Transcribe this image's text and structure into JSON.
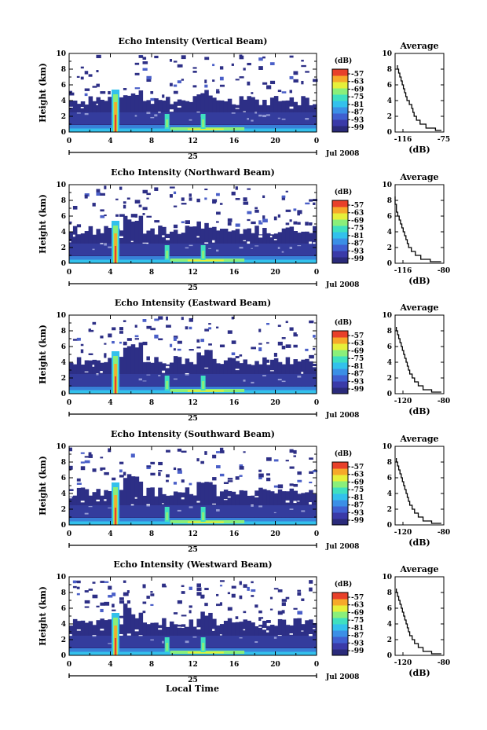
{
  "colors": {
    "colorbar": [
      "#2a2a7a",
      "#3a3aa8",
      "#3f5fd0",
      "#3b8fe6",
      "#33c1ec",
      "#3fe0c0",
      "#8aef7a",
      "#e6f03a",
      "#f6a92a",
      "#e8402a"
    ],
    "background": "#ffffff",
    "ink": "#000000"
  },
  "shared": {
    "ylabel": "Height (km)",
    "colorbar_unit": "(dB)",
    "colorbar_ticks": [
      "-57",
      "-63",
      "-69",
      "-75",
      "-81",
      "-87",
      "-93",
      "-99"
    ],
    "x_ticks": [
      "0",
      "4",
      "8",
      "12",
      "16",
      "20",
      "0"
    ],
    "y_ticks": [
      "0",
      "2",
      "4",
      "6",
      "8",
      "10"
    ],
    "day_label": "25",
    "month_year": "Jul 2008",
    "avg_title": "Average",
    "avg_xlabel": "(dB)",
    "xlabel": "Local Time"
  },
  "chart_data": [
    {
      "type": "heatmap",
      "title": "Echo Intensity (Vertical Beam)",
      "xlabel": "",
      "ylabel": "Height (km)",
      "xlim": [
        0,
        24
      ],
      "ylim": [
        0,
        10
      ],
      "zunit": "dB",
      "zlim": [
        -99,
        -57
      ],
      "features": {
        "ground_layer_top_km": 0.5,
        "cloud_layer_top_km": 4.0,
        "rain_event_hour": 4.5,
        "secondary_event_hours": [
          9.5,
          13.0
        ]
      },
      "profile": {
        "type": "line",
        "title": "Average",
        "xlabel": "(dB)",
        "xlim": [
          -116,
          -75
        ],
        "xticks": [
          "-116",
          "-75"
        ],
        "heights": [
          0.2,
          0.5,
          1,
          1.5,
          2,
          2.5,
          3,
          3.5,
          4,
          4.5,
          5,
          5.5,
          6,
          6.5,
          7,
          7.5,
          8,
          8.5
        ],
        "values": [
          -77,
          -82,
          -90,
          -95,
          -98,
          -100,
          -101,
          -102,
          -104,
          -106,
          -107,
          -108,
          -109,
          -110,
          -111,
          -112,
          -113,
          -114
        ]
      }
    },
    {
      "type": "heatmap",
      "title": "Echo Intensity (Northward Beam)",
      "xlabel": "",
      "ylabel": "Height (km)",
      "xlim": [
        0,
        24
      ],
      "ylim": [
        0,
        10
      ],
      "zunit": "dB",
      "zlim": [
        -99,
        -57
      ],
      "features": {
        "ground_layer_top_km": 0.5,
        "cloud_layer_top_km": 4.2,
        "rain_event_hour": 4.5,
        "secondary_event_hours": [
          9.5,
          13.0
        ]
      },
      "profile": {
        "type": "line",
        "title": "Average",
        "xlabel": "(dB)",
        "xlim": [
          -116,
          -80
        ],
        "xticks": [
          "-116",
          "-80"
        ],
        "heights": [
          0.2,
          0.5,
          1,
          1.5,
          2,
          2.5,
          3,
          3.5,
          4,
          4.5,
          5,
          5.5,
          6,
          6.5,
          7,
          7.5,
          8,
          8.5
        ],
        "values": [
          -82,
          -90,
          -97,
          -101,
          -104,
          -106,
          -107,
          -108,
          -109,
          -110,
          -111,
          -112,
          -113,
          -114,
          -115,
          -115,
          -116,
          -116
        ]
      }
    },
    {
      "type": "heatmap",
      "title": "Echo Intensity (Eastward Beam)",
      "xlabel": "",
      "ylabel": "Height (km)",
      "xlim": [
        0,
        24
      ],
      "ylim": [
        0,
        10
      ],
      "zunit": "dB",
      "zlim": [
        -99,
        -57
      ],
      "features": {
        "ground_layer_top_km": 0.5,
        "cloud_layer_top_km": 4.2,
        "rain_event_hour": 4.5,
        "secondary_event_hours": [
          9.5,
          13.0
        ]
      },
      "profile": {
        "type": "line",
        "title": "Average",
        "xlabel": "(dB)",
        "xlim": [
          -120,
          -80
        ],
        "xticks": [
          "-120",
          "-80"
        ],
        "heights": [
          0.2,
          0.5,
          1,
          1.5,
          2,
          2.5,
          3,
          3.5,
          4,
          4.5,
          5,
          5.5,
          6,
          6.5,
          7,
          7.5,
          8,
          8.5
        ],
        "values": [
          -82,
          -90,
          -97,
          -101,
          -104,
          -106,
          -108,
          -109,
          -110,
          -111,
          -112,
          -113,
          -114,
          -115,
          -116,
          -117,
          -118,
          -119
        ]
      }
    },
    {
      "type": "heatmap",
      "title": "Echo Intensity (Southward Beam)",
      "xlabel": "",
      "ylabel": "Height (km)",
      "xlim": [
        0,
        24
      ],
      "ylim": [
        0,
        10
      ],
      "zunit": "dB",
      "zlim": [
        -99,
        -57
      ],
      "features": {
        "ground_layer_top_km": 0.5,
        "cloud_layer_top_km": 4.2,
        "rain_event_hour": 4.5,
        "secondary_event_hours": [
          9.5,
          13.0
        ]
      },
      "profile": {
        "type": "line",
        "title": "Average",
        "xlabel": "(dB)",
        "xlim": [
          -120,
          -80
        ],
        "xticks": [
          "-120",
          "-80"
        ],
        "heights": [
          0.2,
          0.5,
          1,
          1.5,
          2,
          2.5,
          3,
          3.5,
          4,
          4.5,
          5,
          5.5,
          6,
          6.5,
          7,
          7.5,
          8,
          8.5
        ],
        "values": [
          -82,
          -90,
          -97,
          -101,
          -104,
          -106,
          -108,
          -109,
          -110,
          -111,
          -112,
          -113,
          -114,
          -115,
          -116,
          -117,
          -118,
          -119
        ]
      }
    },
    {
      "type": "heatmap",
      "title": "Echo Intensity (Westward Beam)",
      "xlabel": "Local Time",
      "ylabel": "Height (km)",
      "xlim": [
        0,
        24
      ],
      "ylim": [
        0,
        10
      ],
      "zunit": "dB",
      "zlim": [
        -99,
        -57
      ],
      "features": {
        "ground_layer_top_km": 0.5,
        "cloud_layer_top_km": 4.2,
        "rain_event_hour": 4.5,
        "secondary_event_hours": [
          9.5,
          13.0
        ]
      },
      "profile": {
        "type": "line",
        "title": "Average",
        "xlabel": "(dB)",
        "xlim": [
          -120,
          -80
        ],
        "xticks": [
          "-120",
          "-80"
        ],
        "heights": [
          0.2,
          0.5,
          1,
          1.5,
          2,
          2.5,
          3,
          3.5,
          4,
          4.5,
          5,
          5.5,
          6,
          6.5,
          7,
          7.5,
          8,
          8.5
        ],
        "values": [
          -82,
          -90,
          -97,
          -101,
          -104,
          -106,
          -108,
          -109,
          -110,
          -111,
          -112,
          -113,
          -114,
          -115,
          -116,
          -117,
          -118,
          -119
        ]
      }
    }
  ]
}
